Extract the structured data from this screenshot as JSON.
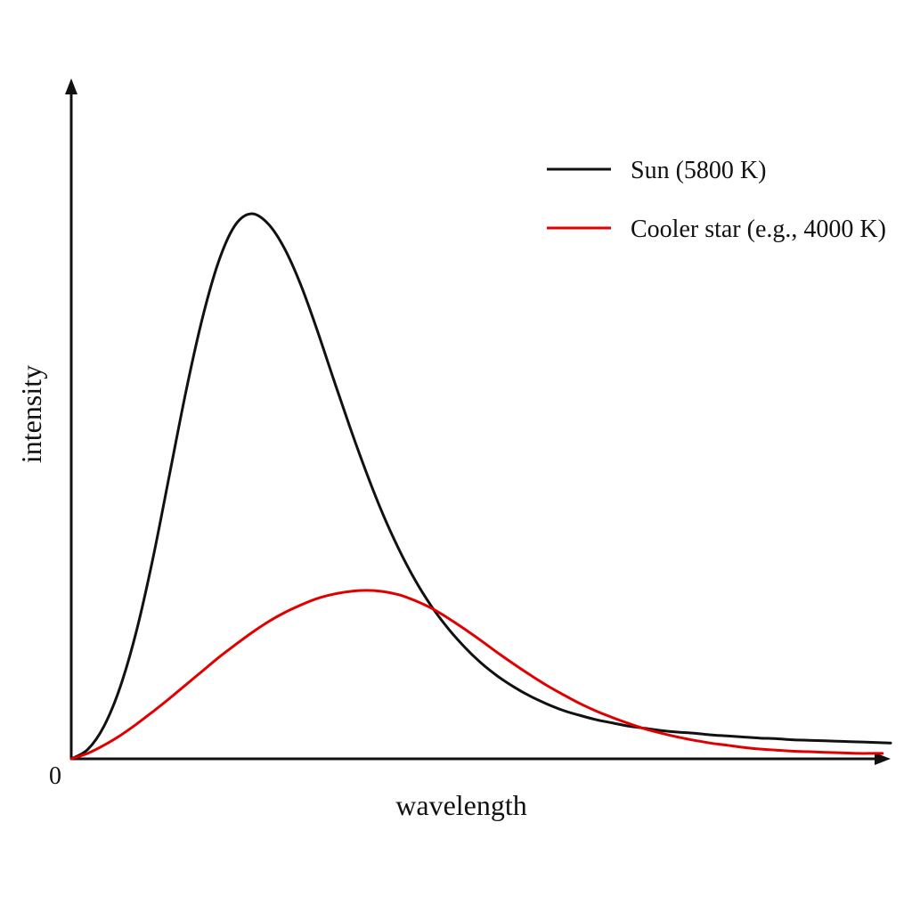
{
  "chart_data": {
    "type": "line",
    "xlabel": "wavelength",
    "ylabel": "intensity",
    "origin_label": "0",
    "xlim": [
      0,
      1
    ],
    "ylim": [
      0,
      1
    ],
    "grid": false,
    "legend_placement": "top-right",
    "series": [
      {
        "name": "Sun (5800 K)",
        "color": "#111111",
        "x": [
          0,
          0.02,
          0.04,
          0.06,
          0.08,
          0.1,
          0.12,
          0.14,
          0.16,
          0.18,
          0.2,
          0.22,
          0.24,
          0.26,
          0.28,
          0.3,
          0.32,
          0.34,
          0.36,
          0.38,
          0.4,
          0.42,
          0.44,
          0.46,
          0.48,
          0.5,
          0.52,
          0.54,
          0.56,
          0.58,
          0.6,
          0.62,
          0.64,
          0.66,
          0.68,
          0.7,
          0.72,
          0.74,
          0.76,
          0.78,
          0.8,
          0.82,
          0.84,
          0.86,
          0.88,
          0.9,
          0.92,
          0.94,
          0.96,
          0.98,
          1.0
        ],
        "values": [
          0.0,
          0.017,
          0.06,
          0.133,
          0.237,
          0.37,
          0.522,
          0.674,
          0.808,
          0.913,
          0.979,
          1.0,
          0.982,
          0.937,
          0.87,
          0.787,
          0.697,
          0.609,
          0.526,
          0.45,
          0.384,
          0.327,
          0.279,
          0.239,
          0.205,
          0.176,
          0.152,
          0.132,
          0.115,
          0.101,
          0.089,
          0.08,
          0.072,
          0.066,
          0.06,
          0.056,
          0.052,
          0.049,
          0.047,
          0.044,
          0.042,
          0.04,
          0.038,
          0.037,
          0.035,
          0.034,
          0.033,
          0.032,
          0.031,
          0.03,
          0.029
        ]
      },
      {
        "name": "Cooler star (e.g., 4000 K)",
        "color": "#e00000",
        "x": [
          0,
          0.02,
          0.04,
          0.06,
          0.08,
          0.1,
          0.12,
          0.14,
          0.16,
          0.18,
          0.2,
          0.22,
          0.24,
          0.26,
          0.28,
          0.3,
          0.32,
          0.34,
          0.36,
          0.38,
          0.4,
          0.42,
          0.44,
          0.46,
          0.48,
          0.5,
          0.52,
          0.54,
          0.56,
          0.58,
          0.6,
          0.62,
          0.64,
          0.66,
          0.68,
          0.7,
          0.72,
          0.74,
          0.76,
          0.78,
          0.8,
          0.82,
          0.84,
          0.86,
          0.88,
          0.9,
          0.92,
          0.94,
          0.96,
          0.98,
          0.99
        ],
        "values": [
          0.0,
          0.01,
          0.025,
          0.043,
          0.064,
          0.087,
          0.111,
          0.136,
          0.161,
          0.186,
          0.209,
          0.231,
          0.251,
          0.268,
          0.282,
          0.294,
          0.302,
          0.307,
          0.309,
          0.307,
          0.301,
          0.29,
          0.276,
          0.258,
          0.238,
          0.217,
          0.195,
          0.174,
          0.154,
          0.135,
          0.118,
          0.102,
          0.088,
          0.076,
          0.065,
          0.055,
          0.047,
          0.04,
          0.034,
          0.029,
          0.025,
          0.021,
          0.018,
          0.016,
          0.014,
          0.013,
          0.012,
          0.011,
          0.01,
          0.01,
          0.01
        ]
      }
    ]
  }
}
